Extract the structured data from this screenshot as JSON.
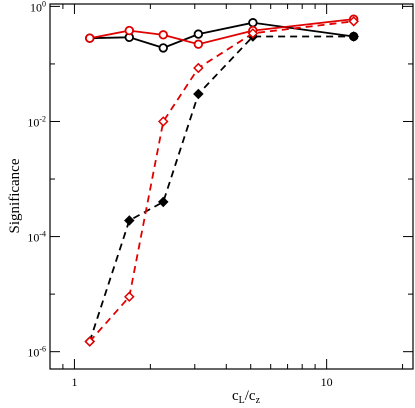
{
  "chart_data": {
    "type": "line",
    "xlabel": "c",
    "xlabel_sub1": "L",
    "xlabel_slash": "/c",
    "xlabel_sub2": "z",
    "ylabel": "Significance",
    "xscale": "log",
    "yscale": "log",
    "xlim": [
      0.8,
      22
    ],
    "ylim": [
      5e-07,
      1.1
    ],
    "grid": false,
    "legend": "none",
    "x_ticks": [
      {
        "value": 1,
        "label": "1"
      },
      {
        "value": 10,
        "label": "10"
      }
    ],
    "y_ticks": [
      {
        "value": 1e-06,
        "base": "10",
        "exp": "-6"
      },
      {
        "value": 0.0001,
        "base": "10",
        "exp": "-4"
      },
      {
        "value": 0.01,
        "base": "10",
        "exp": "-2"
      },
      {
        "value": 1,
        "base": "10",
        "exp": "0"
      }
    ],
    "series": [
      {
        "color": "#000000",
        "line": "solid",
        "marker": "circle-open",
        "x": [
          1.15,
          1.65,
          2.25,
          3.1,
          5.1,
          12.8
        ],
        "y": [
          0.28,
          0.29,
          0.19,
          0.33,
          0.52,
          0.3
        ]
      },
      {
        "color": "#e00000",
        "line": "solid",
        "marker": "circle-open",
        "x": [
          1.15,
          1.65,
          2.25,
          3.1,
          5.1,
          12.8
        ],
        "y": [
          0.28,
          0.38,
          0.32,
          0.22,
          0.38,
          0.6
        ]
      },
      {
        "color": "#000000",
        "line": "dashed",
        "marker": "diamond-filled",
        "x": [
          1.15,
          1.65,
          2.25,
          3.1,
          5.1,
          12.8
        ],
        "y": [
          1.5e-06,
          0.00019,
          0.0004,
          0.03,
          0.3,
          0.3
        ]
      },
      {
        "color": "#e00000",
        "line": "dashed",
        "marker": "diamond-open",
        "x": [
          1.15,
          1.65,
          2.25,
          3.1,
          5.1,
          12.8
        ],
        "y": [
          1.5e-06,
          9e-06,
          0.01,
          0.085,
          0.34,
          0.55
        ]
      }
    ]
  }
}
